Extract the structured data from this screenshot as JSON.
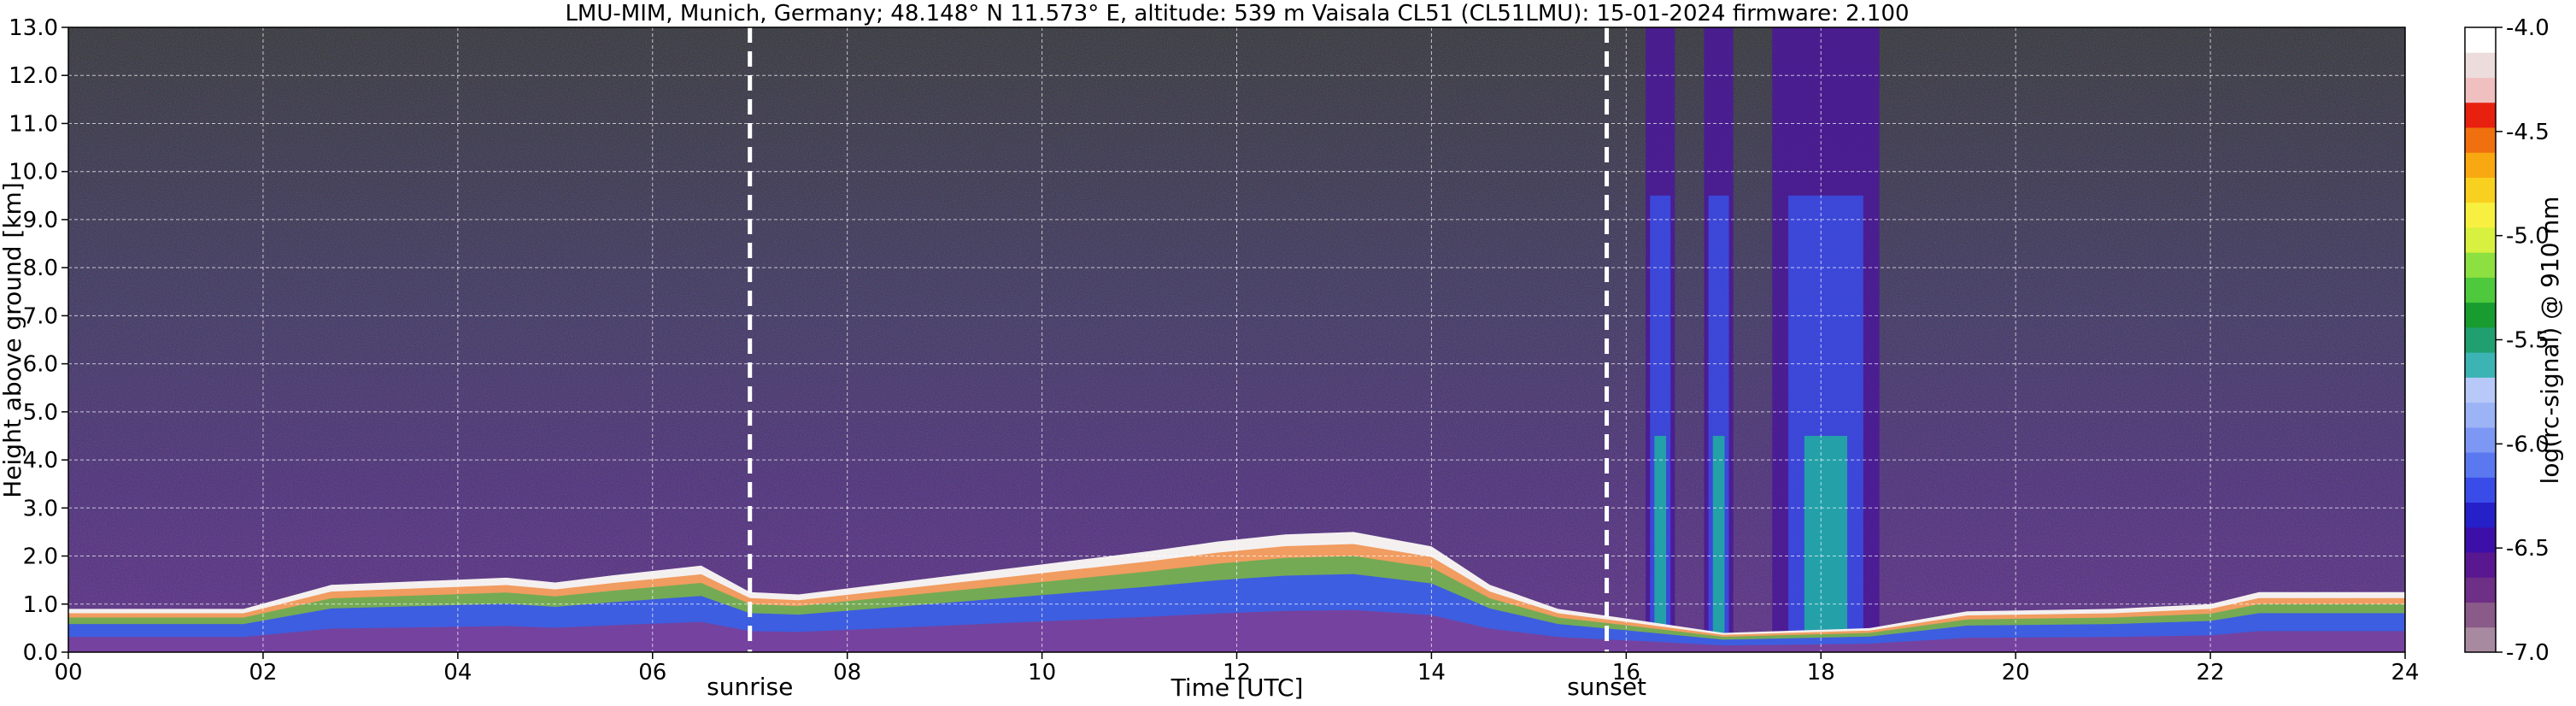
{
  "chart_data": {
    "type": "heatmap",
    "title": "LMU-MIM, Munich, Germany; 48.148° N 11.573° E, altitude: 539 m    Vaisala CL51 (CL51LMU): 15-01-2024    firmware: 2.100",
    "xlabel": "Time [UTC]",
    "ylabel": "Height above ground [km]",
    "xlim": [
      0,
      24
    ],
    "ylim": [
      0,
      13
    ],
    "x_ticks": [
      "00",
      "02",
      "04",
      "06",
      "08",
      "10",
      "12",
      "14",
      "16",
      "18",
      "20",
      "22",
      "24"
    ],
    "y_ticks": [
      "0.0",
      "1.0",
      "2.0",
      "3.0",
      "4.0",
      "5.0",
      "6.0",
      "7.0",
      "8.0",
      "9.0",
      "10.0",
      "11.0",
      "12.0",
      "13.0"
    ],
    "grid": true,
    "colorbar": {
      "label": "log(rc-signal) @ 910 nm",
      "range": [
        -7.0,
        -4.0
      ],
      "ticks": [
        "-4.0",
        "-4.5",
        "-5.0",
        "-5.5",
        "-6.0",
        "-6.5",
        "-7.0"
      ],
      "colors": [
        "#a78aa0",
        "#8a5a88",
        "#6e2f86",
        "#5a1890",
        "#3c10a8",
        "#2620c8",
        "#3a4ce8",
        "#5a78f0",
        "#7c98f4",
        "#9cb4f6",
        "#b8c8f8",
        "#3cb4b4",
        "#20a070",
        "#189c30",
        "#4ec83c",
        "#8ce040",
        "#d8f040",
        "#f8f040",
        "#f8d020",
        "#f8a810",
        "#f07010",
        "#e82010",
        "#f0c0c0",
        "#ecdcdc",
        "#ffffff"
      ]
    },
    "annotations": [
      {
        "label": "sunrise",
        "x": 7.0
      },
      {
        "label": "sunset",
        "x": 15.8
      }
    ],
    "features": {
      "boundary_layer_top_km": [
        [
          0,
          0.9
        ],
        [
          1.8,
          0.9
        ],
        [
          2.7,
          1.4
        ],
        [
          4.5,
          1.55
        ],
        [
          5.0,
          1.45
        ],
        [
          5.6,
          1.6
        ],
        [
          6.5,
          1.8
        ],
        [
          7.0,
          1.25
        ],
        [
          7.5,
          1.2
        ],
        [
          8.5,
          1.45
        ],
        [
          9.5,
          1.7
        ],
        [
          10.5,
          1.95
        ],
        [
          11.1,
          2.1
        ],
        [
          11.8,
          2.3
        ],
        [
          12.5,
          2.45
        ],
        [
          13.2,
          2.5
        ],
        [
          14.0,
          2.2
        ],
        [
          14.6,
          1.4
        ],
        [
          15.3,
          0.9
        ],
        [
          16.0,
          0.7
        ],
        [
          17.0,
          0.4
        ],
        [
          18.5,
          0.5
        ],
        [
          19.5,
          0.85
        ],
        [
          21.0,
          0.9
        ],
        [
          22.0,
          1.0
        ],
        [
          22.5,
          1.25
        ],
        [
          24,
          1.25
        ]
      ],
      "strong_signal_columns": [
        {
          "start": 16.2,
          "end": 16.5
        },
        {
          "start": 16.8,
          "end": 17.1
        },
        {
          "start": 17.5,
          "end": 18.6
        }
      ]
    }
  }
}
